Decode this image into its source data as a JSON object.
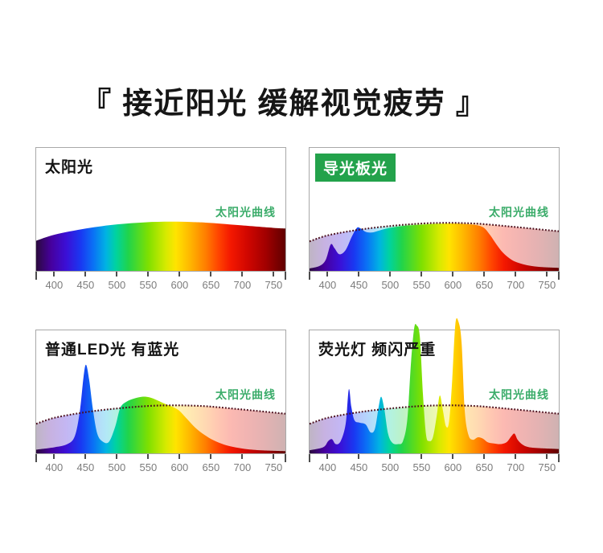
{
  "page": {
    "title": "『 接近阳光 缓解视觉疲劳 』"
  },
  "axis": {
    "range": [
      370,
      770
    ],
    "tick_values": [
      400,
      450,
      500,
      550,
      600,
      650,
      700,
      750
    ],
    "tick_labels": [
      "400",
      "450",
      "500",
      "550",
      "600",
      "650",
      "700",
      "750"
    ]
  },
  "reference_curve": {
    "label": "太阳光曲线",
    "points": [
      [
        370,
        0.24
      ],
      [
        400,
        0.29
      ],
      [
        450,
        0.335
      ],
      [
        500,
        0.365
      ],
      [
        550,
        0.385
      ],
      [
        585,
        0.39
      ],
      [
        620,
        0.388
      ],
      [
        650,
        0.38
      ],
      [
        700,
        0.357
      ],
      [
        750,
        0.332
      ],
      [
        770,
        0.322
      ]
    ]
  },
  "colors": {
    "badge_green": "#23a24b",
    "badge_text": "#ffffff",
    "ref_label_green": "#3bac6a",
    "dotted_line": "#4a0e1c",
    "panel_border": "#a8a8a8",
    "axis_tick": "#4d4d4d",
    "tick_label": "#7c7c7c",
    "title_text": "#141414"
  },
  "spectrum_gradient": [
    [
      "0%",
      "#2b0a3d"
    ],
    [
      "6%",
      "#46009e"
    ],
    [
      "12%",
      "#3b0fd6"
    ],
    [
      "18%",
      "#1939f2"
    ],
    [
      "23%",
      "#0a72f5"
    ],
    [
      "28%",
      "#00b3e3"
    ],
    [
      "32%",
      "#00d3a0"
    ],
    [
      "37%",
      "#21d44a"
    ],
    [
      "45%",
      "#7fe000"
    ],
    [
      "52%",
      "#d6ea00"
    ],
    [
      "56%",
      "#ffe400"
    ],
    [
      "62%",
      "#ffb400"
    ],
    [
      "68%",
      "#ff7e00"
    ],
    [
      "73%",
      "#ff4500"
    ],
    [
      "78%",
      "#f41800"
    ],
    [
      "85%",
      "#cf0600"
    ],
    [
      "92%",
      "#a30000"
    ],
    [
      "100%",
      "#5f0000"
    ]
  ],
  "chart_data": [
    {
      "type": "area",
      "title": "太阳光",
      "title_style": "plain",
      "show_reference_dotted": false,
      "x_unit": "nm",
      "spectrum_points": [
        [
          370,
          0.245
        ],
        [
          400,
          0.295
        ],
        [
          450,
          0.345
        ],
        [
          500,
          0.378
        ],
        [
          545,
          0.395
        ],
        [
          585,
          0.4
        ],
        [
          620,
          0.397
        ],
        [
          650,
          0.39
        ],
        [
          700,
          0.37
        ],
        [
          750,
          0.35
        ],
        [
          770,
          0.345
        ]
      ]
    },
    {
      "type": "area",
      "title": "导光板光",
      "title_style": "badge",
      "show_reference_dotted": true,
      "x_unit": "nm",
      "spectrum_points": [
        [
          370,
          0.02
        ],
        [
          386,
          0.04
        ],
        [
          396,
          0.09
        ],
        [
          404,
          0.215
        ],
        [
          410,
          0.185
        ],
        [
          418,
          0.135
        ],
        [
          428,
          0.17
        ],
        [
          438,
          0.28
        ],
        [
          446,
          0.35
        ],
        [
          452,
          0.345
        ],
        [
          460,
          0.318
        ],
        [
          470,
          0.312
        ],
        [
          480,
          0.325
        ],
        [
          492,
          0.342
        ],
        [
          506,
          0.356
        ],
        [
          525,
          0.368
        ],
        [
          550,
          0.376
        ],
        [
          575,
          0.382
        ],
        [
          600,
          0.385
        ],
        [
          622,
          0.38
        ],
        [
          638,
          0.372
        ],
        [
          650,
          0.35
        ],
        [
          660,
          0.29
        ],
        [
          670,
          0.215
        ],
        [
          680,
          0.15
        ],
        [
          690,
          0.105
        ],
        [
          700,
          0.075
        ],
        [
          712,
          0.055
        ],
        [
          726,
          0.04
        ],
        [
          745,
          0.03
        ],
        [
          770,
          0.024
        ]
      ]
    },
    {
      "type": "area",
      "title": "普通LED光 有蓝光",
      "title_style": "plain",
      "show_reference_dotted": true,
      "x_unit": "nm",
      "spectrum_points": [
        [
          370,
          0.03
        ],
        [
          400,
          0.05
        ],
        [
          420,
          0.075
        ],
        [
          432,
          0.14
        ],
        [
          440,
          0.34
        ],
        [
          446,
          0.62
        ],
        [
          450,
          0.72
        ],
        [
          455,
          0.6
        ],
        [
          461,
          0.36
        ],
        [
          468,
          0.16
        ],
        [
          477,
          0.095
        ],
        [
          487,
          0.095
        ],
        [
          497,
          0.22
        ],
        [
          505,
          0.37
        ],
        [
          515,
          0.42
        ],
        [
          527,
          0.445
        ],
        [
          540,
          0.46
        ],
        [
          552,
          0.455
        ],
        [
          565,
          0.43
        ],
        [
          578,
          0.4
        ],
        [
          590,
          0.375
        ],
        [
          600,
          0.345
        ],
        [
          612,
          0.28
        ],
        [
          625,
          0.21
        ],
        [
          640,
          0.15
        ],
        [
          655,
          0.105
        ],
        [
          672,
          0.07
        ],
        [
          690,
          0.048
        ],
        [
          710,
          0.033
        ],
        [
          735,
          0.024
        ],
        [
          770,
          0.018
        ]
      ]
    },
    {
      "type": "area",
      "title": "荧光灯 频闪严重",
      "title_style": "plain",
      "show_reference_dotted": true,
      "x_unit": "nm",
      "spectrum_points": [
        [
          370,
          0.025
        ],
        [
          392,
          0.05
        ],
        [
          400,
          0.1
        ],
        [
          406,
          0.115
        ],
        [
          412,
          0.075
        ],
        [
          420,
          0.1
        ],
        [
          428,
          0.24
        ],
        [
          433,
          0.52
        ],
        [
          437,
          0.38
        ],
        [
          442,
          0.27
        ],
        [
          450,
          0.25
        ],
        [
          460,
          0.235
        ],
        [
          468,
          0.17
        ],
        [
          475,
          0.2
        ],
        [
          481,
          0.38
        ],
        [
          485,
          0.46
        ],
        [
          490,
          0.36
        ],
        [
          496,
          0.16
        ],
        [
          503,
          0.085
        ],
        [
          512,
          0.075
        ],
        [
          520,
          0.1
        ],
        [
          527,
          0.28
        ],
        [
          533,
          0.75
        ],
        [
          538,
          1.02
        ],
        [
          542,
          1.04
        ],
        [
          547,
          0.95
        ],
        [
          552,
          0.48
        ],
        [
          557,
          0.15
        ],
        [
          562,
          0.1
        ],
        [
          568,
          0.13
        ],
        [
          574,
          0.3
        ],
        [
          579,
          0.47
        ],
        [
          584,
          0.35
        ],
        [
          589,
          0.22
        ],
        [
          594,
          0.26
        ],
        [
          599,
          0.6
        ],
        [
          604,
          1.05
        ],
        [
          609,
          1.07
        ],
        [
          614,
          0.9
        ],
        [
          619,
          0.35
        ],
        [
          625,
          0.15
        ],
        [
          632,
          0.11
        ],
        [
          640,
          0.13
        ],
        [
          648,
          0.12
        ],
        [
          656,
          0.09
        ],
        [
          666,
          0.08
        ],
        [
          676,
          0.075
        ],
        [
          686,
          0.09
        ],
        [
          694,
          0.14
        ],
        [
          699,
          0.16
        ],
        [
          704,
          0.11
        ],
        [
          712,
          0.07
        ],
        [
          722,
          0.05
        ],
        [
          740,
          0.042
        ],
        [
          770,
          0.035
        ]
      ]
    }
  ]
}
